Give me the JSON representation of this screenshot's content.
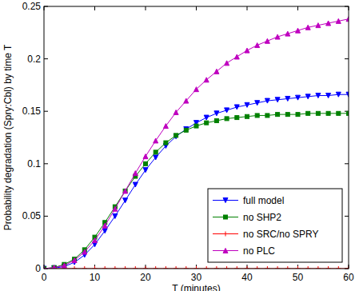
{
  "chart_data": {
    "type": "line",
    "x_label": "T (minutes)",
    "y_label": "Probability degradation (Spry:Cbl) by time T",
    "x": [
      0,
      2,
      4,
      6,
      8,
      10,
      12,
      14,
      16,
      18,
      20,
      22,
      24,
      26,
      28,
      30,
      32,
      34,
      36,
      38,
      40,
      42,
      44,
      46,
      48,
      50,
      52,
      54,
      56,
      58,
      60
    ],
    "series": [
      {
        "name": "full model",
        "color": "#0000ff",
        "marker": "triangle-down",
        "line_style": "solid",
        "values": [
          0,
          0.0005,
          0.002,
          0.006,
          0.013,
          0.023,
          0.036,
          0.05,
          0.065,
          0.08,
          0.094,
          0.106,
          0.117,
          0.126,
          0.133,
          0.139,
          0.144,
          0.148,
          0.151,
          0.154,
          0.156,
          0.158,
          0.16,
          0.161,
          0.162,
          0.163,
          0.164,
          0.165,
          0.165,
          0.166,
          0.166
        ]
      },
      {
        "name": "no SHP2",
        "color": "#008000",
        "marker": "square",
        "line_style": "solid",
        "values": [
          0,
          0.001,
          0.004,
          0.009,
          0.018,
          0.03,
          0.044,
          0.059,
          0.074,
          0.088,
          0.1,
          0.111,
          0.12,
          0.127,
          0.132,
          0.136,
          0.139,
          0.141,
          0.143,
          0.144,
          0.145,
          0.146,
          0.146,
          0.147,
          0.147,
          0.147,
          0.148,
          0.148,
          0.148,
          0.148,
          0.148
        ]
      },
      {
        "name": "no SRC/no SPRY",
        "color": "#ff0000",
        "marker": "plus",
        "line_style": "solid",
        "values": [
          0,
          0,
          0,
          0,
          0,
          0,
          0,
          0,
          0,
          0,
          0,
          0,
          0,
          0,
          0,
          0,
          0,
          0,
          0,
          0,
          0,
          0,
          0,
          0,
          0,
          0,
          0,
          0,
          0,
          0,
          0
        ]
      },
      {
        "name": "no PLC",
        "color": "#bf00bf",
        "marker": "triangle-up",
        "line_style": "solid",
        "values": [
          0,
          0.001,
          0.003,
          0.008,
          0.016,
          0.027,
          0.041,
          0.057,
          0.074,
          0.091,
          0.107,
          0.122,
          0.136,
          0.149,
          0.16,
          0.171,
          0.18,
          0.188,
          0.196,
          0.202,
          0.208,
          0.213,
          0.217,
          0.221,
          0.224,
          0.227,
          0.23,
          0.232,
          0.234,
          0.236,
          0.238
        ]
      }
    ],
    "xlim": [
      0,
      60
    ],
    "xticks": [
      0,
      10,
      20,
      30,
      40,
      50,
      60
    ],
    "ylim": [
      0,
      0.25
    ],
    "yticks": [
      0,
      0.05,
      0.1,
      0.15,
      0.2,
      0.25
    ],
    "grid": false,
    "legend": "lower right"
  }
}
